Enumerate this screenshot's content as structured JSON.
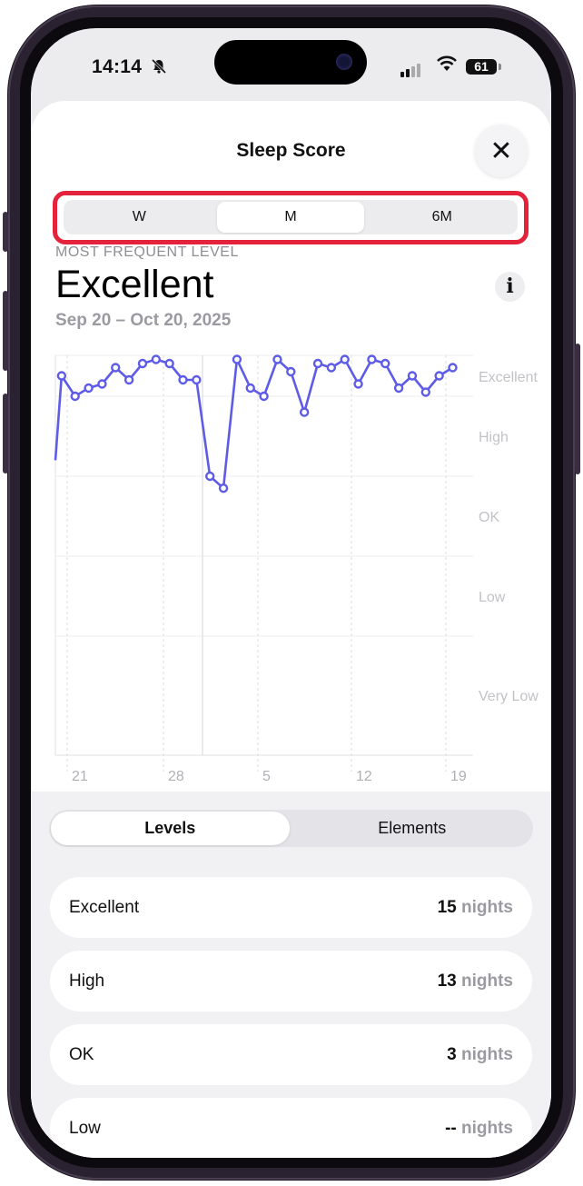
{
  "status_bar": {
    "time": "14:14",
    "battery": "61"
  },
  "sheet": {
    "title": "Sleep Score",
    "close_symbol": "✕"
  },
  "range_selector": {
    "options": [
      "W",
      "M",
      "6M"
    ],
    "selected": "M"
  },
  "summary": {
    "label": "MOST FREQUENT LEVEL",
    "level": "Excellent",
    "date_range": "Sep 20 – Oct 20, 2025",
    "info_symbol": "i"
  },
  "chart_data": {
    "type": "line",
    "y_levels": [
      "Excellent",
      "High",
      "OK",
      "Low",
      "Very Low"
    ],
    "x_tick_labels": [
      "21",
      "28",
      "5",
      "12",
      "19"
    ],
    "x_dates": [
      "Sep 20",
      "Sep 21",
      "Sep 22",
      "Sep 23",
      "Sep 24",
      "Sep 25",
      "Sep 26",
      "Sep 27",
      "Sep 28",
      "Sep 29",
      "Sep 30",
      "Oct 1",
      "Oct 2",
      "Oct 3",
      "Oct 4",
      "Oct 5",
      "Oct 6",
      "Oct 7",
      "Oct 8",
      "Oct 9",
      "Oct 10",
      "Oct 11",
      "Oct 12",
      "Oct 13",
      "Oct 14",
      "Oct 15",
      "Oct 16",
      "Oct 17",
      "Oct 18",
      "Oct 19",
      "Oct 20"
    ],
    "y_scores": [
      76,
      90,
      85,
      87,
      88,
      92,
      89,
      93,
      94,
      93,
      89,
      89,
      80,
      77,
      94,
      87,
      85,
      94,
      91,
      84,
      93,
      92,
      94,
      88,
      94,
      93,
      87,
      90,
      86,
      90,
      92
    ],
    "color": "#5e5ce6"
  },
  "tabs": {
    "options": [
      "Levels",
      "Elements"
    ],
    "selected": "Levels"
  },
  "levels": [
    {
      "name": "Excellent",
      "count": "15",
      "unit": "nights"
    },
    {
      "name": "High",
      "count": "13",
      "unit": "nights"
    },
    {
      "name": "OK",
      "count": "3",
      "unit": "nights"
    },
    {
      "name": "Low",
      "count": "--",
      "unit": "nights"
    }
  ]
}
